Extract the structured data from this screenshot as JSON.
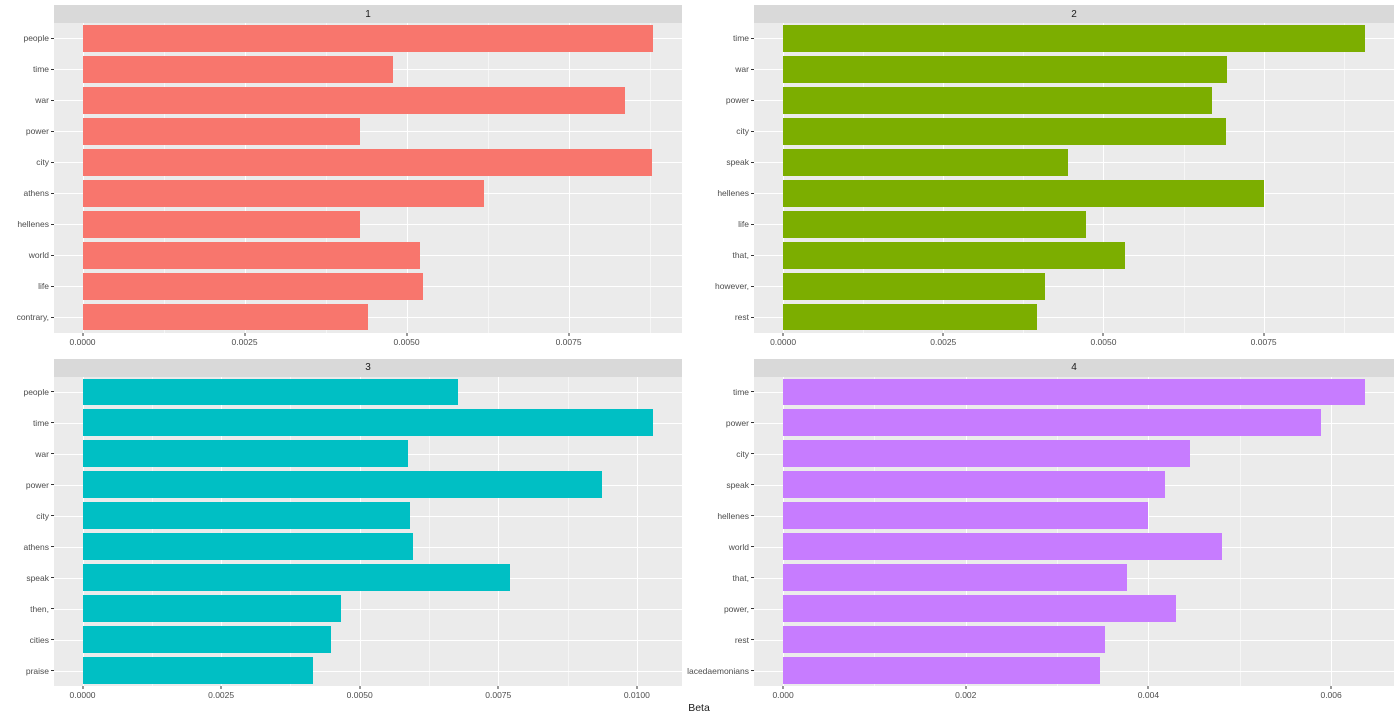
{
  "figure": {
    "xlabel": "Beta"
  },
  "colors": {
    "strip_bg": "#D9D9D9",
    "panel_bg": "#EBEBEB",
    "gridline": "#FFFFFF",
    "axis_text": "#4D4D4D",
    "strip_text": "#1A1A1A",
    "facet_1_bar": "#F8766D",
    "facet_2_bar": "#7CAE00",
    "facet_3_bar": "#00BFC4",
    "facet_4_bar": "#C77CFF"
  },
  "chart_data": {
    "type": "bar",
    "orientation": "horizontal",
    "xlabel": "Beta",
    "grid": "on",
    "legend": "none",
    "expand_mult": 0.05,
    "facets": [
      {
        "title": "1",
        "color": "#F8766D",
        "categories": [
          "people",
          "time",
          "war",
          "power",
          "city",
          "athens",
          "hellenes",
          "world",
          "life",
          "contrary,"
        ],
        "values": [
          0.00881,
          0.00479,
          0.00837,
          0.00428,
          0.00879,
          0.0062,
          0.00428,
          0.00521,
          0.00526,
          0.0044
        ],
        "xlim": [
          0,
          0.00925
        ],
        "ticks": [
          {
            "label": "0.0000",
            "value": 0
          },
          {
            "label": "0.0025",
            "value": 0.0025
          },
          {
            "label": "0.0050",
            "value": 0.005
          },
          {
            "label": "0.0075",
            "value": 0.0075
          }
        ]
      },
      {
        "title": "2",
        "color": "#7CAE00",
        "categories": [
          "time",
          "war",
          "power",
          "city",
          "speak",
          "hellenes",
          "life",
          "that,",
          "however,",
          "rest"
        ],
        "values": [
          0.00908,
          0.00693,
          0.00669,
          0.00692,
          0.00445,
          0.00751,
          0.00472,
          0.00534,
          0.00408,
          0.00396
        ],
        "xlim": [
          0,
          0.00953
        ],
        "ticks": [
          {
            "label": "0.0000",
            "value": 0
          },
          {
            "label": "0.0025",
            "value": 0.0025
          },
          {
            "label": "0.0050",
            "value": 0.005
          },
          {
            "label": "0.0075",
            "value": 0.0075
          }
        ]
      },
      {
        "title": "3",
        "color": "#00BFC4",
        "categories": [
          "people",
          "time",
          "war",
          "power",
          "city",
          "athens",
          "speak",
          "then,",
          "cities",
          "praise"
        ],
        "values": [
          0.00677,
          0.0103,
          0.00587,
          0.00938,
          0.00591,
          0.00597,
          0.00771,
          0.00466,
          0.00448,
          0.00416
        ],
        "xlim": [
          0,
          0.01082
        ],
        "ticks": [
          {
            "label": "0.0000",
            "value": 0
          },
          {
            "label": "0.0025",
            "value": 0.0025
          },
          {
            "label": "0.0050",
            "value": 0.005
          },
          {
            "label": "0.0075",
            "value": 0.0075
          },
          {
            "label": "0.0100",
            "value": 0.01
          }
        ]
      },
      {
        "title": "4",
        "color": "#C77CFF",
        "categories": [
          "time",
          "power",
          "city",
          "speak",
          "hellenes",
          "world",
          "that,",
          "power,",
          "rest",
          "lacedaemonians"
        ],
        "values": [
          0.00637,
          0.00589,
          0.00446,
          0.00418,
          0.00399,
          0.00481,
          0.00377,
          0.0043,
          0.00353,
          0.00347
        ],
        "xlim": [
          0,
          0.00669
        ],
        "ticks": [
          {
            "label": "0.000",
            "value": 0
          },
          {
            "label": "0.002",
            "value": 0.002
          },
          {
            "label": "0.004",
            "value": 0.004
          },
          {
            "label": "0.006",
            "value": 0.006
          }
        ]
      }
    ]
  }
}
